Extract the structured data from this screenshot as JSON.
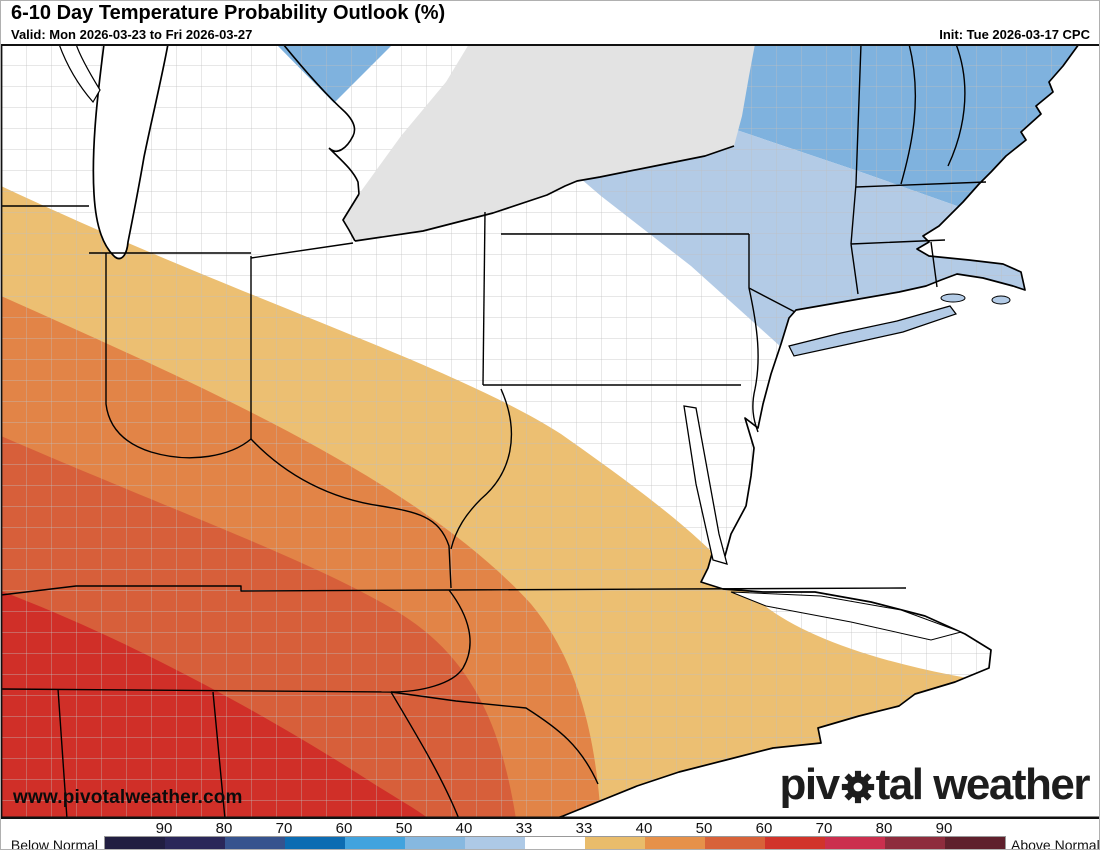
{
  "header": {
    "title": "6-10 Day Temperature Probability Outlook (%)",
    "valid": "Valid: Mon 2026-03-23 to Fri 2026-03-27",
    "init": "Init: Tue 2026-03-17 CPC"
  },
  "map": {
    "watermark": "www.pivotalweather.com",
    "colors": {
      "tan": "#ecbf72",
      "orange": "#e28447",
      "deep_orange": "#d75f3a",
      "red": "#d02f28",
      "blue_medium": "#7fb2de",
      "blue_light": "#b3cbe6",
      "canada_gray": "#e3e3e3",
      "water_white": "#ffffff"
    }
  },
  "logo": {
    "part1": "piv",
    "part2": "tal weather"
  },
  "legend": {
    "below_label": "Below Normal",
    "above_label": "Above Normal",
    "ticks": [
      "90",
      "80",
      "70",
      "60",
      "50",
      "40",
      "33",
      "33",
      "40",
      "50",
      "60",
      "70",
      "80",
      "90"
    ],
    "segments": [
      "#211e41",
      "#2a2759",
      "#36538e",
      "#0c6cb2",
      "#41a3de",
      "#86b8e0",
      "#adc9e6",
      "#ffffff",
      "#e9bc6b",
      "#e6914a",
      "#d86239",
      "#d1342b",
      "#cb2f4e",
      "#8e2c3d",
      "#5f202c"
    ]
  }
}
